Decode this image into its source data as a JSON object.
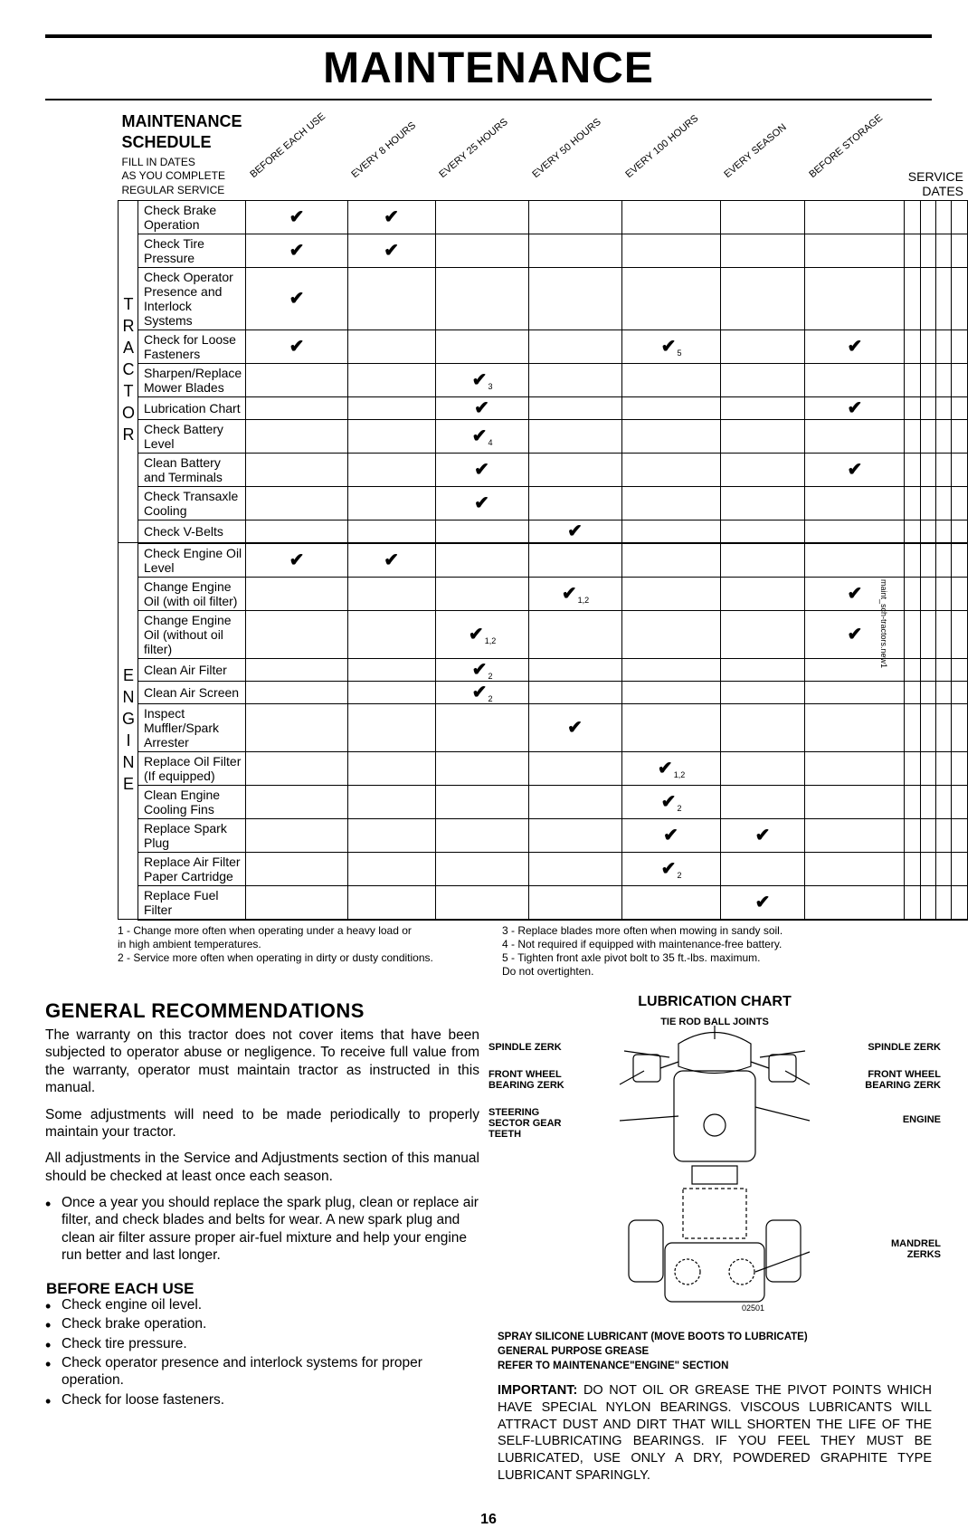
{
  "page_title": "MAINTENANCE",
  "page_number": "16",
  "side_text": "maint_sch-tractors.new1",
  "schedule": {
    "title": "MAINTENANCE SCHEDULE",
    "subtitle": "FILL IN DATES\nAS YOU COMPLETE\nREGULAR SERVICE",
    "service_dates_label": "SERVICE DATES",
    "interval_headers": [
      "BEFORE EACH USE",
      "EVERY 8 HOURS",
      "EVERY 25 HOURS",
      "EVERY 50 HOURS",
      "EVERY 100 HOURS",
      "EVERY SEASON",
      "BEFORE STORAGE"
    ],
    "groups": [
      {
        "label": "TRACTOR",
        "rows": [
          {
            "task": "Check Brake Operation",
            "checks": [
              "✔",
              "✔",
              "",
              "",
              "",
              "",
              ""
            ],
            "subs": [
              "",
              "",
              "",
              "",
              "",
              "",
              ""
            ]
          },
          {
            "task": "Check Tire Pressure",
            "checks": [
              "✔",
              "✔",
              "",
              "",
              "",
              "",
              ""
            ],
            "subs": [
              "",
              "",
              "",
              "",
              "",
              "",
              ""
            ]
          },
          {
            "task": "Check Operator Presence and Interlock Systems",
            "checks": [
              "✔",
              "",
              "",
              "",
              "",
              "",
              ""
            ],
            "subs": [
              "",
              "",
              "",
              "",
              "",
              "",
              ""
            ]
          },
          {
            "task": "Check for Loose Fasteners",
            "checks": [
              "✔",
              "",
              "",
              "",
              "✔",
              "",
              "✔"
            ],
            "subs": [
              "",
              "",
              "",
              "",
              "5",
              "",
              ""
            ]
          },
          {
            "task": "Sharpen/Replace Mower Blades",
            "checks": [
              "",
              "",
              "✔",
              "",
              "",
              "",
              ""
            ],
            "subs": [
              "",
              "",
              "3",
              "",
              "",
              "",
              ""
            ]
          },
          {
            "task": "Lubrication Chart",
            "checks": [
              "",
              "",
              "✔",
              "",
              "",
              "",
              "✔"
            ],
            "subs": [
              "",
              "",
              "",
              "",
              "",
              "",
              ""
            ]
          },
          {
            "task": "Check Battery Level",
            "checks": [
              "",
              "",
              "✔",
              "",
              "",
              "",
              ""
            ],
            "subs": [
              "",
              "",
              "4",
              "",
              "",
              "",
              ""
            ]
          },
          {
            "task": "Clean Battery and Terminals",
            "checks": [
              "",
              "",
              "✔",
              "",
              "",
              "",
              "✔"
            ],
            "subs": [
              "",
              "",
              "",
              "",
              "",
              "",
              ""
            ]
          },
          {
            "task": "Check Transaxle Cooling",
            "checks": [
              "",
              "",
              "✔",
              "",
              "",
              "",
              ""
            ],
            "subs": [
              "",
              "",
              "",
              "",
              "",
              "",
              ""
            ]
          },
          {
            "task": "Check V-Belts",
            "checks": [
              "",
              "",
              "",
              "✔",
              "",
              "",
              ""
            ],
            "subs": [
              "",
              "",
              "",
              "",
              "",
              "",
              ""
            ]
          }
        ]
      },
      {
        "label": "ENGINE",
        "rows": [
          {
            "task": "Check Engine Oil Level",
            "checks": [
              "✔",
              "✔",
              "",
              "",
              "",
              "",
              ""
            ],
            "subs": [
              "",
              "",
              "",
              "",
              "",
              "",
              ""
            ]
          },
          {
            "task": "Change Engine Oil (with oil filter)",
            "checks": [
              "",
              "",
              "",
              "✔",
              "",
              "",
              "✔"
            ],
            "subs": [
              "",
              "",
              "",
              "1,2",
              "",
              "",
              ""
            ]
          },
          {
            "task": "Change Engine Oil (without oil filter)",
            "checks": [
              "",
              "",
              "✔",
              "",
              "",
              "",
              "✔"
            ],
            "subs": [
              "",
              "",
              "1,2",
              "",
              "",
              "",
              ""
            ]
          },
          {
            "task": "Clean Air Filter",
            "checks": [
              "",
              "",
              "✔",
              "",
              "",
              "",
              ""
            ],
            "subs": [
              "",
              "",
              "2",
              "",
              "",
              "",
              ""
            ]
          },
          {
            "task": "Clean Air Screen",
            "checks": [
              "",
              "",
              "✔",
              "",
              "",
              "",
              ""
            ],
            "subs": [
              "",
              "",
              "2",
              "",
              "",
              "",
              ""
            ]
          },
          {
            "task": "Inspect Muffler/Spark Arrester",
            "checks": [
              "",
              "",
              "",
              "✔",
              "",
              "",
              ""
            ],
            "subs": [
              "",
              "",
              "",
              "",
              "",
              "",
              ""
            ]
          },
          {
            "task": "Replace Oil Filter (If equipped)",
            "checks": [
              "",
              "",
              "",
              "",
              "✔",
              "",
              ""
            ],
            "subs": [
              "",
              "",
              "",
              "",
              "1,2",
              "",
              ""
            ]
          },
          {
            "task": "Clean Engine Cooling Fins",
            "checks": [
              "",
              "",
              "",
              "",
              "✔",
              "",
              ""
            ],
            "subs": [
              "",
              "",
              "",
              "",
              "2",
              "",
              ""
            ]
          },
          {
            "task": "Replace Spark Plug",
            "checks": [
              "",
              "",
              "",
              "",
              "✔",
              "✔",
              ""
            ],
            "subs": [
              "",
              "",
              "",
              "",
              "",
              "",
              ""
            ]
          },
          {
            "task": "Replace Air Filter Paper Cartridge",
            "checks": [
              "",
              "",
              "",
              "",
              "✔",
              "",
              ""
            ],
            "subs": [
              "",
              "",
              "",
              "",
              "2",
              "",
              ""
            ]
          },
          {
            "task": "Replace Fuel Filter",
            "checks": [
              "",
              "",
              "",
              "",
              "",
              "✔",
              ""
            ],
            "subs": [
              "",
              "",
              "",
              "",
              "",
              "",
              ""
            ]
          }
        ]
      }
    ]
  },
  "footnotes_left": "1 - Change more often when operating under a heavy load or\n      in high ambient temperatures.\n2 - Service more often when operating in dirty or dusty conditions.",
  "footnotes_right": "3 - Replace blades more often when mowing in sandy soil.\n4 - Not required if equipped with maintenance-free battery.\n5 - Tighten front axle pivot bolt to 35 ft.-lbs. maximum.\n      Do not overtighten.",
  "general": {
    "title": "GENERAL RECOMMENDATIONS",
    "p1": "The warranty on this tractor does not cover items that have been subjected to operator abuse or negligence. To receive full value from the warranty, operator must maintain tractor as instructed in this manual.",
    "p2": "Some adjustments will need to be made periodically to properly maintain your tractor.",
    "p3": "All adjustments in the Service and Adjustments section of this manual should be checked at least once each season.",
    "bullet": "Once a year you should replace the spark plug, clean or replace air filter, and check blades and belts for wear. A new spark plug and clean air filter assure proper air-fuel mixture and help your engine run better and last longer."
  },
  "before": {
    "title": "BEFORE EACH USE",
    "items": [
      "Check engine oil level.",
      "Check brake operation.",
      "Check tire pressure.",
      "Check operator presence and interlock systems for proper operation.",
      "Check for loose fasteners."
    ]
  },
  "lubrication": {
    "title": "LUBRICATION CHART",
    "labels": {
      "tie_rod": "TIE ROD BALL JOINTS",
      "spindle_l": "SPINDLE ZERK",
      "spindle_r": "SPINDLE ZERK",
      "front_wheel_l": "FRONT WHEEL\nBEARING ZERK",
      "front_wheel_r": "FRONT WHEEL\nBEARING ZERK",
      "steering": "STEERING\nSECTOR GEAR\nTEETH",
      "engine": "ENGINE",
      "mandrel": "MANDREL\nZERKS",
      "figno": "02501"
    },
    "notes": "SPRAY SILICONE LUBRICANT (MOVE BOOTS TO LUBRICATE)\nGENERAL PURPOSE GREASE\nREFER TO MAINTENANCE\"ENGINE\" SECTION",
    "important_label": "IMPORTANT:",
    "important": "DO NOT OIL OR GREASE THE PIVOT POINTS WHICH HAVE SPECIAL NYLON BEARINGS. VISCOUS LUBRICANTS WILL ATTRACT DUST AND DIRT THAT WILL SHORTEN THE LIFE OF THE SELF-LUBRICATING BEARINGS. IF YOU FEEL THEY MUST BE LUBRICATED, USE ONLY A DRY, POWDERED GRAPHITE TYPE LUBRICANT SPARINGLY."
  }
}
